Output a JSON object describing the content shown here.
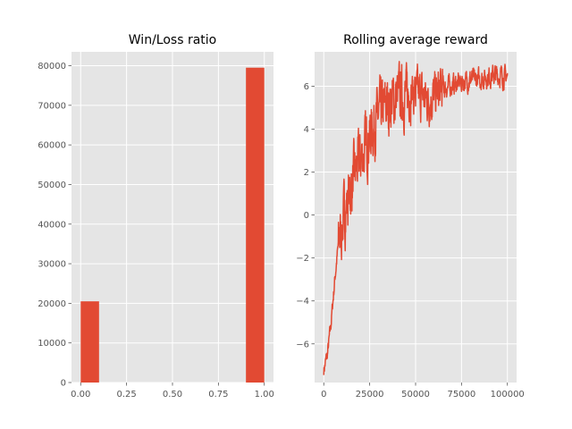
{
  "chart_data": [
    {
      "type": "bar",
      "title": "Win/Loss ratio",
      "xlabel": "",
      "ylabel": "",
      "xlim": [
        -0.05,
        1.05
      ],
      "ylim": [
        0,
        83500
      ],
      "xticks": [
        "0.00",
        "0.25",
        "0.50",
        "0.75",
        "1.00"
      ],
      "xtick_values": [
        0,
        0.25,
        0.5,
        0.75,
        1.0
      ],
      "yticks": [
        "0",
        "10000",
        "20000",
        "30000",
        "40000",
        "50000",
        "60000",
        "70000",
        "80000"
      ],
      "ytick_values": [
        0,
        10000,
        20000,
        30000,
        40000,
        50000,
        60000,
        70000,
        80000
      ],
      "bins": [
        [
          0.0,
          0.1
        ],
        [
          0.9,
          1.0
        ]
      ],
      "values": [
        20500,
        79500
      ],
      "grid": true,
      "color": "#e24a33"
    },
    {
      "type": "line",
      "title": "Rolling average reward",
      "xlabel": "",
      "ylabel": "",
      "xlim": [
        -5000,
        105000
      ],
      "ylim": [
        -7.8,
        7.6
      ],
      "xticks": [
        "0",
        "25000",
        "50000",
        "75000",
        "100000"
      ],
      "xtick_values": [
        0,
        25000,
        50000,
        75000,
        100000
      ],
      "yticks": [
        "−6",
        "−4",
        "−2",
        "0",
        "2",
        "4",
        "6"
      ],
      "ytick_values": [
        -6,
        -4,
        -2,
        0,
        2,
        4,
        6
      ],
      "x": [
        0,
        2000,
        4000,
        6000,
        8000,
        10000,
        12000,
        14000,
        16000,
        18000,
        20000,
        22000,
        24000,
        26000,
        28000,
        30000,
        33000,
        36000,
        40000,
        44000,
        48000,
        52000,
        56000,
        60000,
        64000,
        68000,
        72000,
        76000,
        80000,
        84000,
        88000,
        92000,
        96000,
        100000
      ],
      "y": [
        -7.2,
        -6.5,
        -5.0,
        -3.0,
        -1.3,
        -0.5,
        0.3,
        1.0,
        1.6,
        2.2,
        2.6,
        3.0,
        3.5,
        4.0,
        4.3,
        4.6,
        5.0,
        5.2,
        5.5,
        5.6,
        5.7,
        5.6,
        5.4,
        5.5,
        5.8,
        6.0,
        6.1,
        6.2,
        6.3,
        6.3,
        6.4,
        6.5,
        6.5,
        6.4
      ],
      "grid": true,
      "color": "#e24a33"
    }
  ]
}
